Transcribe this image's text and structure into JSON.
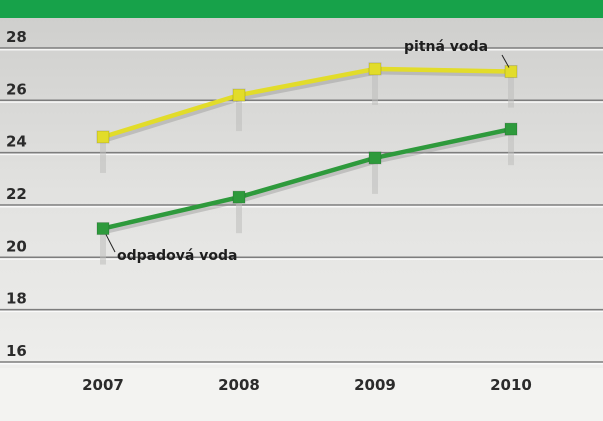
{
  "chart_data": {
    "type": "line",
    "title": "",
    "xlabel": "",
    "ylabel": "",
    "x": [
      "2007",
      "2008",
      "2009",
      "2010"
    ],
    "ylim": [
      16,
      28
    ],
    "yticks": [
      16,
      18,
      20,
      22,
      24,
      26,
      28
    ],
    "grid": true,
    "series": [
      {
        "name": "pitná voda",
        "values": [
          24.6,
          26.2,
          27.2,
          27.1
        ],
        "color": "#e2dc2a"
      },
      {
        "name": "odpadová voda",
        "values": [
          21.1,
          22.3,
          23.8,
          24.9
        ],
        "color": "#2e9a3c"
      }
    ],
    "annotations": [
      {
        "text": "pitná voda",
        "series": 0
      },
      {
        "text": "odpadová voda",
        "series": 1
      }
    ],
    "colors": {
      "header_band": "#17a24a",
      "grid": "#7d7d7d",
      "background": "#e6e6e4"
    }
  }
}
